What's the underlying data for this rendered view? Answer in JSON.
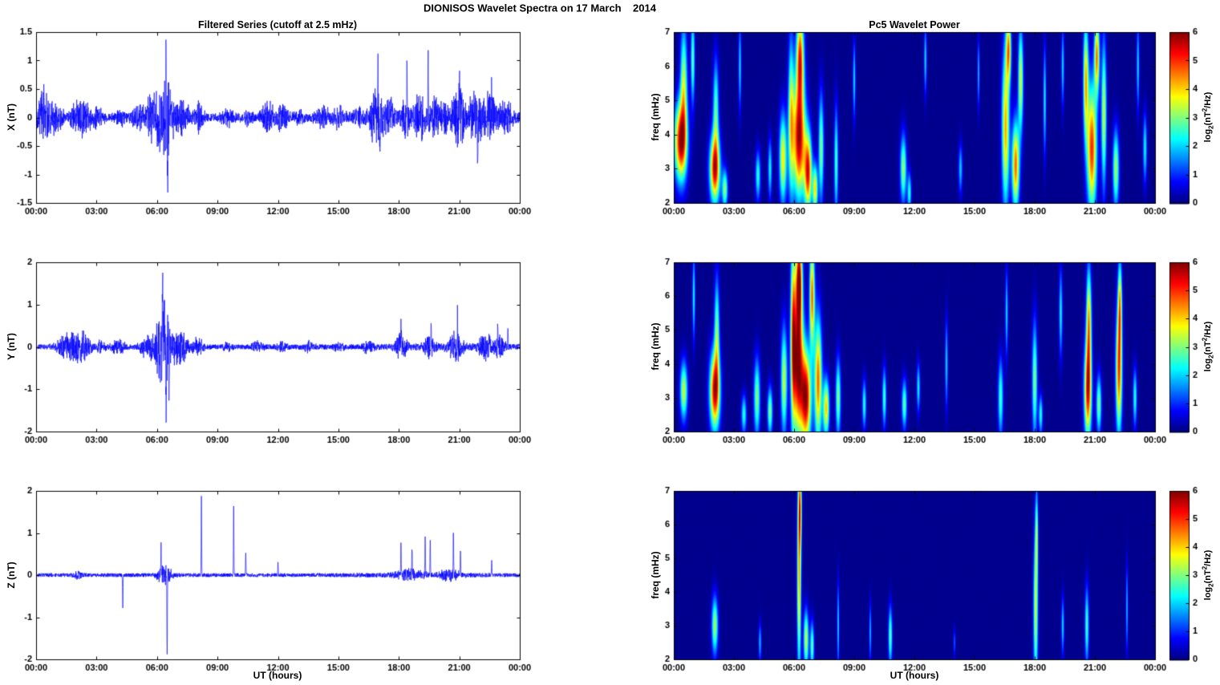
{
  "page_title": "DIONISOS Wavelet Spectra on 17 March    2014",
  "left_column_title": "Filtered Series (cutoff at 2.5 mHz)",
  "right_column_title": "Pc5 Wavelet Power",
  "xlabel": "UT (hours)",
  "time_tick_labels": [
    "00:00",
    "03:00",
    "06:00",
    "09:00",
    "12:00",
    "15:00",
    "18:00",
    "21:00",
    "00:00"
  ],
  "time_range_hours": [
    0,
    24
  ],
  "colorbar": {
    "tick_labels": [
      "0",
      "1",
      "2",
      "3",
      "4",
      "5",
      "6"
    ],
    "clim": [
      0,
      6
    ],
    "label_prefix": "log",
    "label_sub": "2",
    "label_mid": "(nT",
    "label_sup": "2",
    "label_suffix": "/Hz)"
  },
  "chart_data": [
    {
      "type": "line",
      "name": "X filtered series",
      "ylabel": "X (nT)",
      "ylim": [
        -1.5,
        1.5
      ],
      "ytick_values": [
        -1.5,
        -1,
        -0.5,
        0,
        0.5,
        1,
        1.5
      ],
      "ytick_labels": [
        "-1.5",
        "-1",
        "-0.5",
        "0",
        "0.5",
        "1",
        "1.5"
      ],
      "line_color": "#0000ff",
      "noise_base": 0.07,
      "noise_env": [
        [
          0.5,
          0.5,
          0.6
        ],
        [
          6.3,
          0.8,
          0.8
        ],
        [
          19.5,
          3.0,
          1.0
        ]
      ],
      "bursts": [
        [
          0.4,
          0.25,
          0.5
        ],
        [
          1.0,
          0.25,
          0.25
        ],
        [
          2.2,
          0.35,
          0.35
        ],
        [
          3.0,
          0.25,
          0.18
        ],
        [
          4.2,
          0.2,
          0.15
        ],
        [
          5.0,
          0.25,
          0.2
        ],
        [
          5.6,
          0.2,
          0.25
        ],
        [
          6.3,
          0.4,
          0.6
        ],
        [
          6.5,
          0.12,
          0.5
        ],
        [
          7.3,
          0.25,
          0.3
        ],
        [
          8.1,
          0.15,
          0.3
        ],
        [
          9.5,
          0.25,
          0.15
        ],
        [
          10.5,
          0.2,
          0.12
        ],
        [
          11.5,
          0.25,
          0.28
        ],
        [
          12.2,
          0.25,
          0.22
        ],
        [
          13.0,
          0.2,
          0.12
        ],
        [
          14.2,
          0.25,
          0.18
        ],
        [
          15.0,
          0.2,
          0.18
        ],
        [
          16.0,
          0.2,
          0.15
        ],
        [
          16.9,
          0.25,
          0.5
        ],
        [
          17.5,
          0.15,
          0.35
        ],
        [
          18.3,
          0.15,
          0.35
        ],
        [
          19.0,
          0.2,
          0.4
        ],
        [
          19.7,
          0.2,
          0.35
        ],
        [
          20.3,
          0.2,
          0.3
        ],
        [
          21.0,
          0.25,
          0.5
        ],
        [
          21.8,
          0.25,
          0.4
        ],
        [
          22.5,
          0.3,
          0.4
        ],
        [
          23.3,
          0.25,
          0.28
        ]
      ],
      "spikes": [
        [
          6.45,
          0.85
        ],
        [
          6.52,
          -1.1
        ],
        [
          16.95,
          0.75
        ],
        [
          17.05,
          -0.75
        ],
        [
          18.4,
          0.9
        ],
        [
          19.45,
          0.95
        ],
        [
          21.0,
          1.0
        ],
        [
          21.9,
          -0.78
        ],
        [
          22.6,
          0.6
        ]
      ]
    },
    {
      "type": "line",
      "name": "Y filtered series",
      "ylabel": "Y (nT)",
      "ylim": [
        -2,
        2
      ],
      "ytick_values": [
        -2,
        -1,
        0,
        1,
        2
      ],
      "ytick_labels": [
        "-2",
        "-1",
        "0",
        "1",
        "2"
      ],
      "line_color": "#0000ff",
      "noise_base": 0.06,
      "noise_env": [
        [
          6.3,
          0.5,
          0.9
        ],
        [
          20.5,
          2.5,
          0.5
        ]
      ],
      "bursts": [
        [
          1.5,
          0.35,
          0.28
        ],
        [
          2.2,
          0.35,
          0.4
        ],
        [
          3.2,
          0.2,
          0.12
        ],
        [
          4.1,
          0.25,
          0.18
        ],
        [
          5.5,
          0.25,
          0.25
        ],
        [
          6.3,
          0.35,
          0.9
        ],
        [
          7.2,
          0.25,
          0.4
        ],
        [
          8.0,
          0.25,
          0.2
        ],
        [
          9.5,
          0.2,
          0.1
        ],
        [
          11.0,
          0.2,
          0.12
        ],
        [
          12.2,
          0.2,
          0.12
        ],
        [
          13.5,
          0.2,
          0.12
        ],
        [
          15.0,
          0.2,
          0.1
        ],
        [
          16.5,
          0.2,
          0.15
        ],
        [
          18.1,
          0.2,
          0.35
        ],
        [
          19.5,
          0.2,
          0.25
        ],
        [
          20.8,
          0.25,
          0.35
        ],
        [
          22.3,
          0.25,
          0.3
        ],
        [
          23.0,
          0.2,
          0.25
        ]
      ],
      "spikes": [
        [
          6.28,
          1.6
        ],
        [
          6.35,
          1.1
        ],
        [
          6.45,
          -1.7
        ],
        [
          6.6,
          -1.2
        ],
        [
          18.1,
          0.55
        ],
        [
          19.6,
          0.6
        ],
        [
          20.9,
          0.6
        ],
        [
          22.9,
          0.62
        ],
        [
          23.4,
          0.5
        ]
      ]
    },
    {
      "type": "line",
      "name": "Z filtered series",
      "ylabel": "Z (nT)",
      "ylim": [
        -2,
        2
      ],
      "ytick_values": [
        -2,
        -1,
        0,
        1,
        2
      ],
      "ytick_labels": [
        "-2",
        "-1",
        "0",
        "1",
        "2"
      ],
      "line_color": "#0000ff",
      "noise_base": 0.045,
      "noise_env": [
        [
          6.4,
          0.4,
          0.4
        ],
        [
          19.0,
          2.0,
          0.4
        ]
      ],
      "bursts": [
        [
          2.1,
          0.2,
          0.08
        ],
        [
          6.35,
          0.25,
          0.25
        ],
        [
          18.6,
          0.5,
          0.12
        ],
        [
          20.5,
          0.4,
          0.12
        ]
      ],
      "spikes": [
        [
          4.3,
          -0.8
        ],
        [
          6.2,
          0.55
        ],
        [
          6.5,
          -1.75
        ],
        [
          8.2,
          1.85
        ],
        [
          9.8,
          1.65
        ],
        [
          10.4,
          0.5
        ],
        [
          12.0,
          0.3
        ],
        [
          18.1,
          0.75
        ],
        [
          18.65,
          0.6
        ],
        [
          19.3,
          1.0
        ],
        [
          19.55,
          0.85
        ],
        [
          20.7,
          1.05
        ],
        [
          21.05,
          0.6
        ],
        [
          22.6,
          0.35
        ]
      ]
    },
    {
      "type": "heatmap",
      "name": "X wavelet power",
      "ylabel": "freq (mHz)",
      "ylim": [
        2,
        7
      ],
      "ytick_values": [
        2,
        3,
        4,
        5,
        6,
        7
      ],
      "ytick_labels": [
        "2",
        "3",
        "4",
        "5",
        "6",
        "7"
      ],
      "clim": [
        0,
        6
      ],
      "background": 0.05,
      "blobs": [
        [
          0.35,
          3.8,
          0.22,
          0.8,
          5.6
        ],
        [
          0.5,
          5.5,
          0.12,
          1.2,
          3.2
        ],
        [
          0.95,
          6.2,
          0.07,
          0.9,
          2.8
        ],
        [
          2.05,
          3.0,
          0.18,
          0.7,
          5.4
        ],
        [
          2.1,
          4.8,
          0.1,
          1.0,
          2.6
        ],
        [
          2.55,
          2.4,
          0.1,
          0.4,
          3.0
        ],
        [
          3.3,
          6.0,
          0.05,
          0.9,
          2.0
        ],
        [
          4.2,
          2.8,
          0.09,
          0.5,
          2.4
        ],
        [
          4.8,
          3.0,
          0.07,
          0.6,
          2.2
        ],
        [
          5.45,
          3.3,
          0.13,
          0.9,
          3.8
        ],
        [
          5.85,
          4.5,
          0.1,
          1.6,
          3.3
        ],
        [
          6.25,
          3.9,
          0.22,
          1.2,
          5.8
        ],
        [
          6.3,
          6.3,
          0.13,
          0.9,
          4.6
        ],
        [
          6.7,
          2.9,
          0.13,
          0.8,
          5.0
        ],
        [
          7.05,
          2.4,
          0.09,
          0.5,
          3.8
        ],
        [
          7.35,
          3.6,
          0.09,
          1.1,
          3.0
        ],
        [
          8.1,
          3.2,
          0.07,
          1.1,
          2.6
        ],
        [
          9.0,
          5.6,
          0.05,
          0.8,
          2.0
        ],
        [
          11.45,
          3.0,
          0.11,
          0.7,
          3.1
        ],
        [
          11.75,
          2.3,
          0.07,
          0.4,
          2.4
        ],
        [
          12.55,
          6.2,
          0.05,
          0.7,
          2.0
        ],
        [
          14.3,
          3.0,
          0.07,
          0.5,
          1.9
        ],
        [
          15.2,
          5.8,
          0.04,
          0.7,
          1.8
        ],
        [
          16.55,
          4.2,
          0.13,
          1.6,
          4.2
        ],
        [
          16.7,
          6.5,
          0.09,
          0.7,
          4.0
        ],
        [
          17.05,
          3.1,
          0.13,
          0.9,
          4.6
        ],
        [
          17.3,
          5.6,
          0.09,
          1.1,
          3.5
        ],
        [
          18.5,
          5.0,
          0.05,
          1.1,
          2.2
        ],
        [
          19.4,
          6.0,
          0.05,
          0.8,
          2.0
        ],
        [
          20.55,
          5.6,
          0.09,
          1.2,
          4.0
        ],
        [
          20.85,
          3.6,
          0.17,
          1.3,
          5.0
        ],
        [
          21.1,
          6.3,
          0.09,
          0.8,
          4.4
        ],
        [
          21.45,
          4.6,
          0.09,
          1.5,
          3.4
        ],
        [
          22.05,
          3.0,
          0.11,
          0.8,
          3.2
        ],
        [
          23.15,
          6.0,
          0.05,
          0.9,
          2.0
        ],
        [
          23.5,
          3.6,
          0.07,
          0.7,
          2.2
        ]
      ]
    },
    {
      "type": "heatmap",
      "name": "Y wavelet power",
      "ylabel": "freq (mHz)",
      "ylim": [
        2,
        7
      ],
      "ytick_values": [
        2,
        3,
        4,
        5,
        6,
        7
      ],
      "ytick_labels": [
        "2",
        "3",
        "4",
        "5",
        "6",
        "7"
      ],
      "clim": [
        0,
        6
      ],
      "background": 0.05,
      "blobs": [
        [
          0.5,
          3.2,
          0.13,
          0.6,
          3.4
        ],
        [
          1.0,
          6.0,
          0.05,
          0.9,
          2.2
        ],
        [
          2.05,
          3.2,
          0.18,
          0.8,
          5.5
        ],
        [
          2.15,
          5.0,
          0.09,
          1.1,
          2.8
        ],
        [
          3.5,
          2.5,
          0.09,
          0.4,
          2.4
        ],
        [
          4.15,
          3.0,
          0.11,
          0.8,
          3.0
        ],
        [
          4.8,
          2.6,
          0.09,
          0.5,
          3.0
        ],
        [
          5.5,
          3.5,
          0.11,
          1.1,
          3.4
        ],
        [
          5.95,
          5.0,
          0.09,
          2.0,
          4.0
        ],
        [
          6.2,
          4.0,
          0.18,
          1.5,
          5.8
        ],
        [
          6.25,
          6.5,
          0.11,
          0.9,
          5.2
        ],
        [
          6.6,
          3.0,
          0.18,
          1.0,
          5.6
        ],
        [
          6.9,
          6.0,
          0.09,
          1.1,
          4.6
        ],
        [
          7.2,
          3.5,
          0.13,
          1.3,
          4.6
        ],
        [
          7.6,
          2.7,
          0.11,
          0.6,
          4.0
        ],
        [
          8.2,
          3.0,
          0.09,
          0.8,
          3.0
        ],
        [
          9.5,
          2.8,
          0.07,
          0.5,
          2.4
        ],
        [
          10.5,
          3.0,
          0.07,
          0.6,
          2.6
        ],
        [
          11.5,
          2.8,
          0.09,
          0.5,
          2.8
        ],
        [
          12.2,
          3.3,
          0.06,
          0.5,
          2.2
        ],
        [
          13.6,
          4.0,
          0.05,
          0.9,
          2.0
        ],
        [
          16.3,
          3.0,
          0.09,
          0.8,
          2.6
        ],
        [
          16.6,
          5.5,
          0.05,
          0.9,
          2.0
        ],
        [
          18.0,
          3.5,
          0.09,
          1.2,
          3.0
        ],
        [
          18.3,
          2.5,
          0.07,
          0.4,
          2.4
        ],
        [
          19.3,
          5.5,
          0.06,
          0.9,
          2.2
        ],
        [
          20.65,
          3.2,
          0.13,
          1.0,
          5.2
        ],
        [
          20.7,
          5.3,
          0.09,
          1.1,
          4.0
        ],
        [
          21.2,
          2.8,
          0.09,
          0.6,
          3.0
        ],
        [
          22.2,
          3.8,
          0.11,
          1.3,
          4.8
        ],
        [
          22.25,
          5.8,
          0.07,
          0.9,
          3.4
        ],
        [
          23.0,
          3.0,
          0.07,
          0.6,
          2.4
        ]
      ]
    },
    {
      "type": "heatmap",
      "name": "Z wavelet power",
      "ylabel": "freq (mHz)",
      "ylim": [
        2,
        7
      ],
      "ytick_values": [
        2,
        3,
        4,
        5,
        6,
        7
      ],
      "ytick_labels": [
        "2",
        "3",
        "4",
        "5",
        "6",
        "7"
      ],
      "clim": [
        0,
        6
      ],
      "background": 0.05,
      "blobs": [
        [
          2.05,
          3.0,
          0.11,
          0.6,
          3.2
        ],
        [
          4.3,
          2.5,
          0.05,
          0.4,
          1.8
        ],
        [
          6.25,
          4.5,
          0.07,
          2.0,
          4.2
        ],
        [
          6.3,
          6.5,
          0.06,
          0.8,
          3.4
        ],
        [
          6.6,
          2.6,
          0.09,
          0.6,
          3.4
        ],
        [
          6.9,
          2.4,
          0.07,
          0.5,
          2.8
        ],
        [
          8.2,
          3.0,
          0.04,
          0.9,
          2.0
        ],
        [
          9.8,
          2.8,
          0.04,
          0.6,
          1.8
        ],
        [
          10.8,
          2.7,
          0.07,
          0.6,
          2.8
        ],
        [
          14.0,
          2.5,
          0.04,
          0.3,
          1.2
        ],
        [
          18.05,
          3.5,
          0.08,
          1.6,
          3.4
        ],
        [
          18.1,
          5.8,
          0.05,
          0.9,
          2.4
        ],
        [
          19.4,
          3.0,
          0.05,
          0.6,
          2.0
        ],
        [
          20.6,
          3.0,
          0.07,
          0.8,
          2.6
        ],
        [
          22.6,
          3.5,
          0.04,
          0.9,
          1.8
        ]
      ]
    }
  ]
}
